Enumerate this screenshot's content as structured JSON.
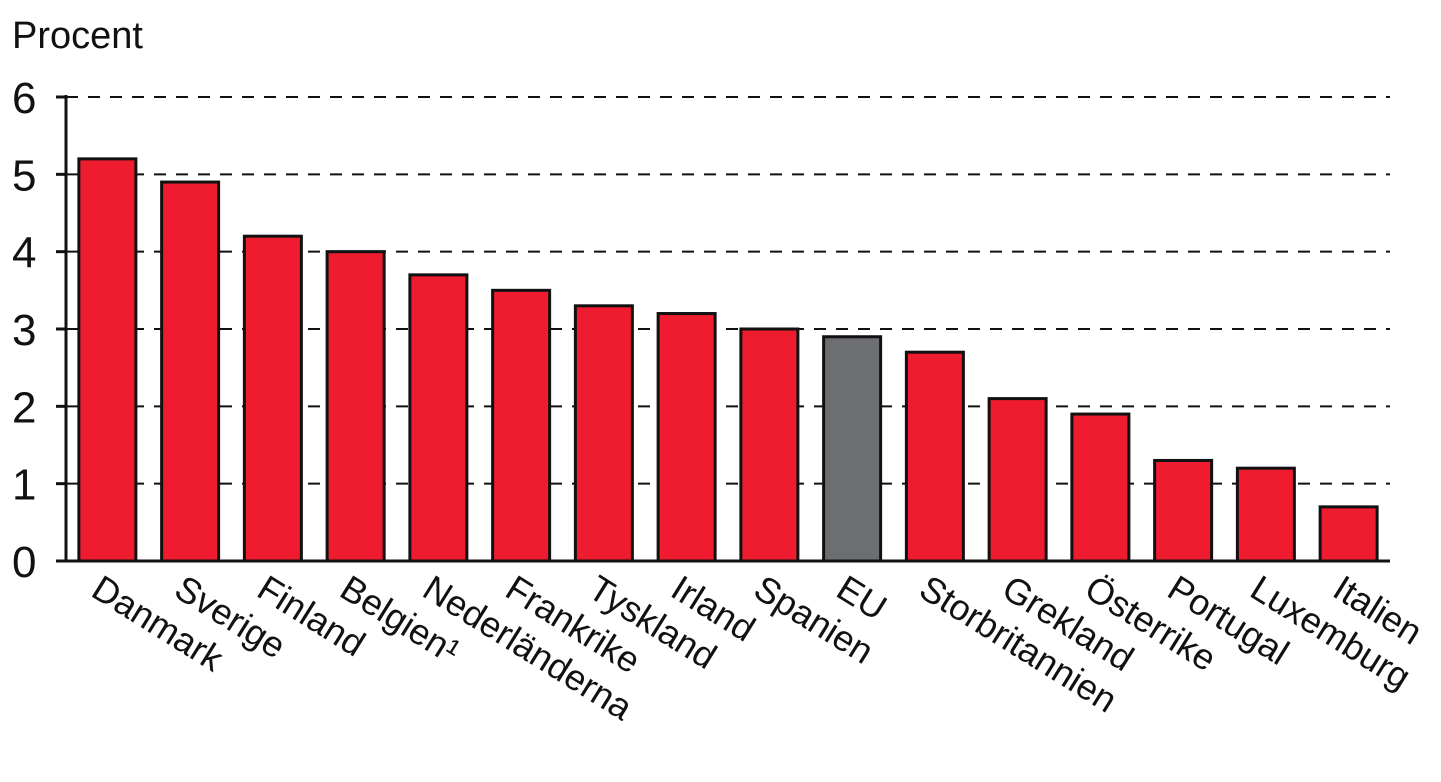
{
  "chart_data": {
    "type": "bar",
    "title": "",
    "ylabel": "Procent",
    "xlabel": "",
    "ylim": [
      0,
      6
    ],
    "yticks": [
      "0",
      "1",
      "2",
      "3",
      "4",
      "5",
      "6"
    ],
    "grid": true,
    "categories": [
      "Danmark",
      "Sverige",
      "Finland",
      "Belgien¹",
      "Nederländerna",
      "Frankrike",
      "Tyskland",
      "Irland",
      "Spanien",
      "EU",
      "Storbritannien",
      "Grekland",
      "Österrike",
      "Portugal",
      "Luxemburg",
      "Italien"
    ],
    "values": [
      5.2,
      4.9,
      4.2,
      4.0,
      3.7,
      3.5,
      3.3,
      3.2,
      3.0,
      2.9,
      2.7,
      2.1,
      1.9,
      1.3,
      1.2,
      0.7
    ],
    "colors": {
      "default": "#ee1c2e",
      "highlight": "#6d6e71",
      "highlight_category": "EU"
    }
  }
}
